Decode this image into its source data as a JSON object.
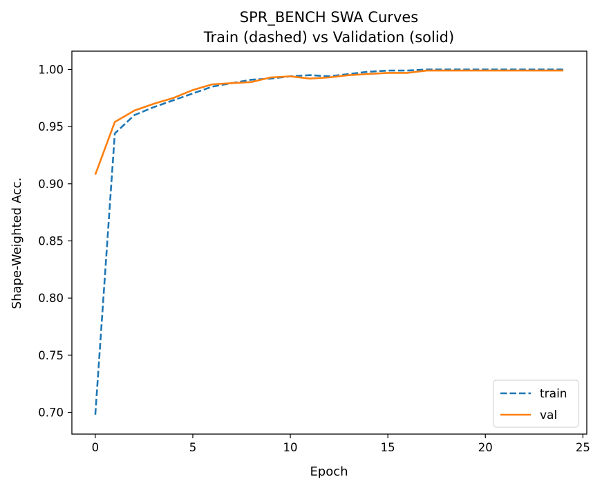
{
  "chart_data": {
    "type": "line",
    "title": "SPR_BENCH SWA Curves",
    "subtitle": "Train (dashed) vs Validation (solid)",
    "xlabel": "Epoch",
    "ylabel": "Shape-Weighted Acc.",
    "xlim": [
      -1.2,
      25.2
    ],
    "ylim": [
      0.681,
      1.016
    ],
    "xticks": [
      0,
      5,
      10,
      15,
      20,
      25
    ],
    "yticks": [
      "0.70",
      "0.75",
      "0.80",
      "0.85",
      "0.90",
      "0.95",
      "1.00"
    ],
    "grid": false,
    "legend_position": "lower-right",
    "x": [
      0,
      1,
      2,
      3,
      4,
      5,
      6,
      7,
      8,
      9,
      10,
      11,
      12,
      13,
      14,
      15,
      16,
      17,
      18,
      19,
      20,
      21,
      22,
      23,
      24
    ],
    "series": [
      {
        "name": "train",
        "style": "dashed",
        "color": "#1f77b4",
        "values": [
          0.698,
          0.944,
          0.96,
          0.967,
          0.973,
          0.979,
          0.985,
          0.988,
          0.991,
          0.992,
          0.994,
          0.995,
          0.994,
          0.996,
          0.998,
          0.999,
          0.999,
          1.0,
          1.0,
          1.0,
          1.0,
          1.0,
          1.0,
          1.0,
          1.0
        ]
      },
      {
        "name": "val",
        "style": "solid",
        "color": "#ff7f0e",
        "values": [
          0.908,
          0.954,
          0.964,
          0.97,
          0.975,
          0.982,
          0.987,
          0.988,
          0.989,
          0.993,
          0.994,
          0.992,
          0.993,
          0.995,
          0.996,
          0.997,
          0.997,
          0.999,
          0.999,
          0.999,
          0.999,
          0.999,
          0.999,
          0.999,
          0.999
        ]
      }
    ]
  }
}
